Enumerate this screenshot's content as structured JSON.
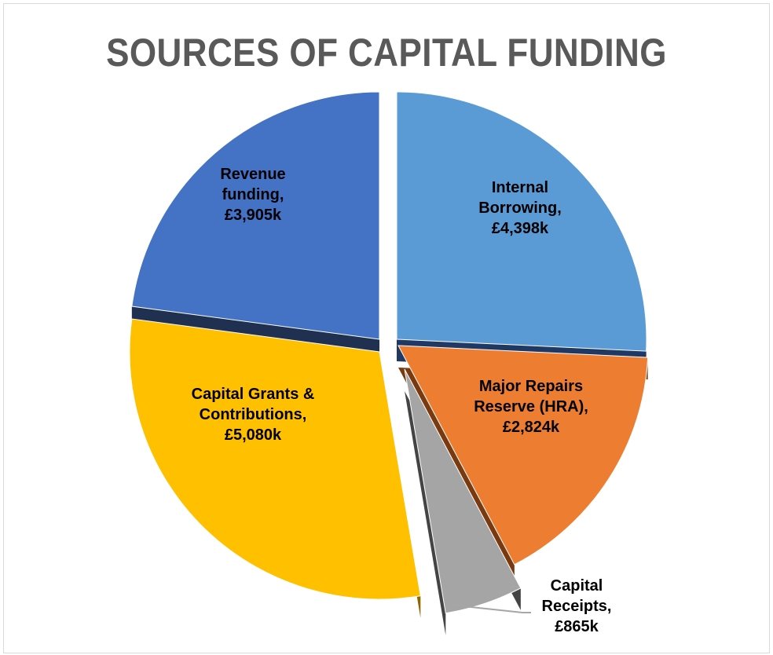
{
  "chart_data": {
    "type": "pie",
    "title": "SOURCES OF CAPITAL FUNDING",
    "unit": "£k",
    "slices": [
      {
        "name": "Internal Borrowing",
        "value": 4398,
        "label_lines": [
          "Internal",
          "Borrowing,",
          "£4,398k"
        ],
        "color": "#5b9bd5",
        "side_color": "#1f3864"
      },
      {
        "name": "Major Repairs Reserve (HRA)",
        "value": 2824,
        "label_lines": [
          "Major Repairs",
          "Reserve (HRA),",
          "£2,824k"
        ],
        "color": "#ed7d31",
        "side_color": "#7a3a10"
      },
      {
        "name": "Capital Receipts",
        "value": 865,
        "label_lines": [
          "Capital",
          "Receipts,",
          "£865k"
        ],
        "color": "#a5a5a5",
        "side_color": "#444444"
      },
      {
        "name": "Capital Grants & Contributions",
        "value": 5080,
        "label_lines": [
          "Capital Grants &",
          "Contributions,",
          "£5,080k"
        ],
        "color": "#ffc000",
        "side_color": "#8a6a00"
      },
      {
        "name": "Revenue funding",
        "value": 3905,
        "label_lines": [
          "Revenue",
          "funding,",
          "£3,905k"
        ],
        "color": "#4472c4",
        "side_color": "#1f3050"
      }
    ],
    "legend": "none",
    "data_labels": "inside"
  }
}
